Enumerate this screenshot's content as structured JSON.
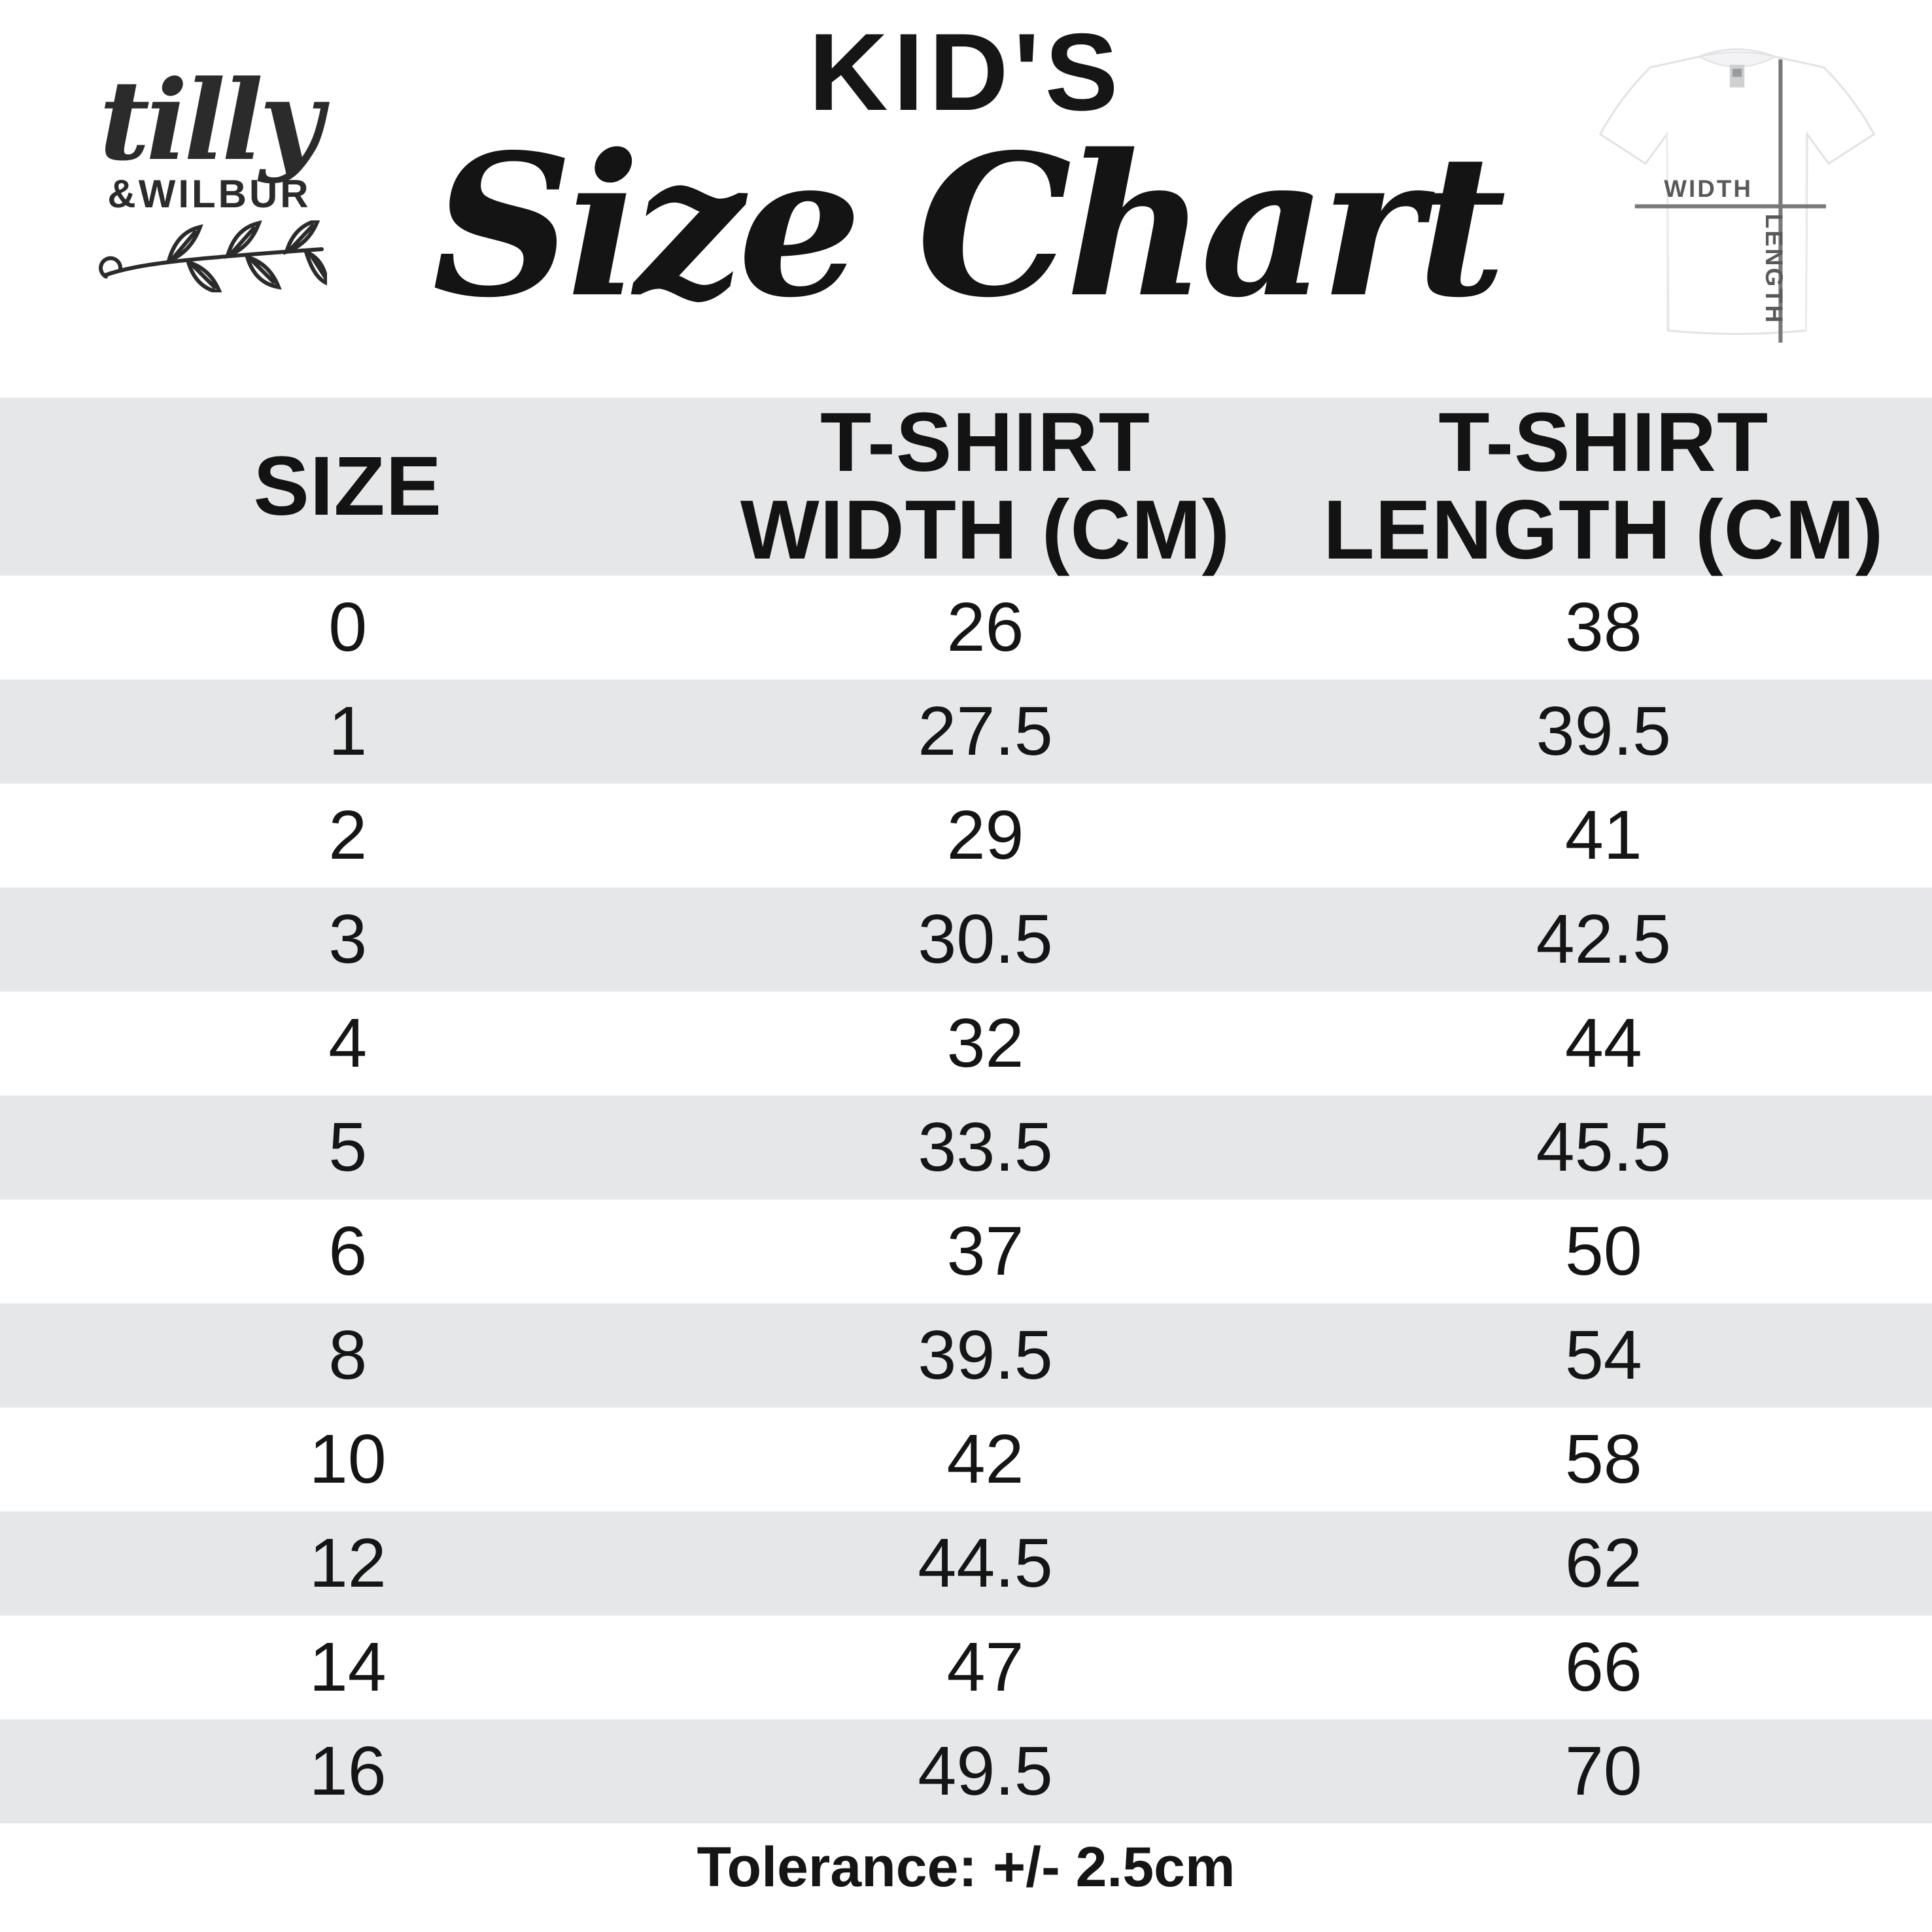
{
  "brand": {
    "name_script": "tilly",
    "name_caps": "&WILBUR"
  },
  "title": {
    "kicker": "KID'S",
    "main": "Size Chart"
  },
  "diagram": {
    "width_label": "WIDTH",
    "length_label": "LENGTH"
  },
  "table": {
    "header": {
      "c1": "SIZE",
      "c2a": "T-SHIRT",
      "c2b": "WIDTH (CM)",
      "c3a": "T-SHIRT",
      "c3b": "LENGTH (CM)"
    },
    "rows": [
      {
        "size": "0",
        "width": "26",
        "length": "38"
      },
      {
        "size": "1",
        "width": "27.5",
        "length": "39.5"
      },
      {
        "size": "2",
        "width": "29",
        "length": "41"
      },
      {
        "size": "3",
        "width": "30.5",
        "length": "42.5"
      },
      {
        "size": "4",
        "width": "32",
        "length": "44"
      },
      {
        "size": "5",
        "width": "33.5",
        "length": "45.5"
      },
      {
        "size": "6",
        "width": "37",
        "length": "50"
      },
      {
        "size": "8",
        "width": "39.5",
        "length": "54"
      },
      {
        "size": "10",
        "width": "42",
        "length": "58"
      },
      {
        "size": "12",
        "width": "44.5",
        "length": "62"
      },
      {
        "size": "14",
        "width": "47",
        "length": "66"
      },
      {
        "size": "16",
        "width": "49.5",
        "length": "70"
      }
    ]
  },
  "footer": {
    "tolerance": "Tolerance: +/- 2.5cm"
  },
  "colors": {
    "band": "#e5e7e9",
    "line_gray": "#77787a",
    "label_gray": "#58595b",
    "ink": "#1a1a1a"
  },
  "chart_data": {
    "type": "table",
    "title": "KID'S Size Chart",
    "columns": [
      "SIZE",
      "T-SHIRT WIDTH (CM)",
      "T-SHIRT LENGTH (CM)"
    ],
    "rows": [
      [
        0,
        26,
        38
      ],
      [
        1,
        27.5,
        39.5
      ],
      [
        2,
        29,
        41
      ],
      [
        3,
        30.5,
        42.5
      ],
      [
        4,
        32,
        44
      ],
      [
        5,
        33.5,
        45.5
      ],
      [
        6,
        37,
        50
      ],
      [
        8,
        39.5,
        54
      ],
      [
        10,
        42,
        58
      ],
      [
        12,
        44.5,
        62
      ],
      [
        14,
        47,
        66
      ],
      [
        16,
        49.5,
        70
      ]
    ],
    "annotations": [
      "Tolerance: +/- 2.5cm"
    ],
    "row_striping": "alternating white / light gray starting white"
  }
}
